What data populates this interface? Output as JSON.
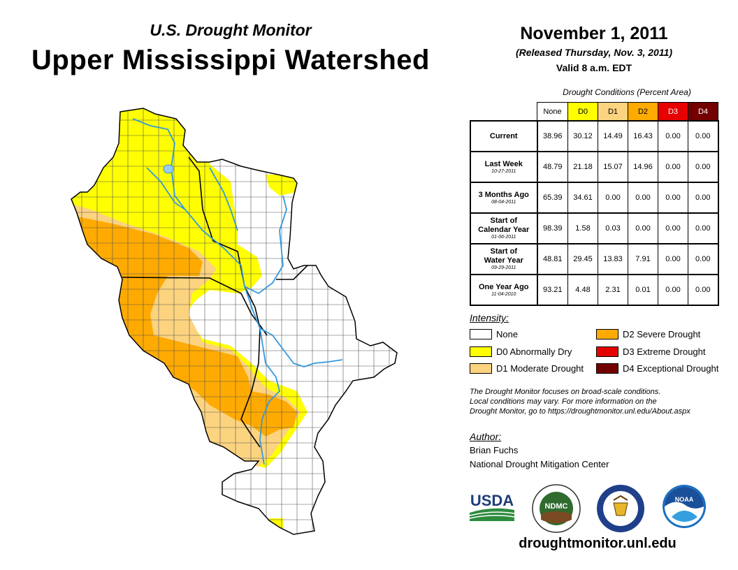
{
  "header": {
    "brand": "U.S. Drought Monitor",
    "region": "Upper Mississippi Watershed",
    "date": "November 1, 2011",
    "released": "(Released Thursday, Nov. 3, 2011)",
    "valid": "Valid 8 a.m. EDT"
  },
  "table": {
    "caption": "Drought Conditions (Percent Area)",
    "columns": [
      "None",
      "D0",
      "D1",
      "D2",
      "D3",
      "D4"
    ],
    "column_colors": [
      "#ffffff",
      "#ffff00",
      "#fcd37f",
      "#ffaa00",
      "#e60000",
      "#730000"
    ],
    "rows": [
      {
        "label": "Current",
        "label2": "",
        "sub": "",
        "values": [
          "38.96",
          "30.12",
          "14.49",
          "16.43",
          "0.00",
          "0.00"
        ]
      },
      {
        "label": "Last Week",
        "label2": "",
        "sub": "10-27-2011",
        "values": [
          "48.79",
          "21.18",
          "15.07",
          "14.96",
          "0.00",
          "0.00"
        ]
      },
      {
        "label": "3 Months Ago",
        "label2": "",
        "sub": "08-04-2011",
        "values": [
          "65.39",
          "34.61",
          "0.00",
          "0.00",
          "0.00",
          "0.00"
        ]
      },
      {
        "label": "Start of",
        "label2": "Calendar Year",
        "sub": "01-06-2011",
        "values": [
          "98.39",
          "1.58",
          "0.03",
          "0.00",
          "0.00",
          "0.00"
        ]
      },
      {
        "label": "Start of",
        "label2": "Water Year",
        "sub": "09-29-2011",
        "values": [
          "48.81",
          "29.45",
          "13.83",
          "7.91",
          "0.00",
          "0.00"
        ]
      },
      {
        "label": "One Year Ago",
        "label2": "",
        "sub": "11-04-2010",
        "values": [
          "93.21",
          "4.48",
          "2.31",
          "0.01",
          "0.00",
          "0.00"
        ]
      }
    ]
  },
  "legend": {
    "heading": "Intensity:",
    "items": [
      {
        "label": "None",
        "color": "#ffffff"
      },
      {
        "label": "D0 Abnormally Dry",
        "color": "#ffff00"
      },
      {
        "label": "D1 Moderate Drought",
        "color": "#fcd37f"
      },
      {
        "label": "D2 Severe Drought",
        "color": "#ffaa00"
      },
      {
        "label": "D3 Extreme Drought",
        "color": "#e60000"
      },
      {
        "label": "D4 Exceptional Drought",
        "color": "#730000"
      }
    ]
  },
  "note": {
    "line1": "The Drought Monitor focuses on broad-scale conditions.",
    "line2": "Local conditions may vary. For more information on the",
    "line3": "Drought Monitor, go to https://droughtmonitor.unl.edu/About.aspx"
  },
  "author": {
    "heading": "Author:",
    "name": "Brian Fuchs",
    "org": "National Drought Mitigation Center"
  },
  "logos": {
    "usda": "USDA",
    "ndmc": "NDMC",
    "noaa": "NOAA"
  },
  "footer": {
    "url": "droughtmonitor.unl.edu"
  },
  "map_colors": {
    "none": "#ffffff",
    "d0": "#ffff00",
    "d1": "#fcd37f",
    "d2": "#ffaa00",
    "water": "#3399dd",
    "lake": "#99ccee"
  }
}
